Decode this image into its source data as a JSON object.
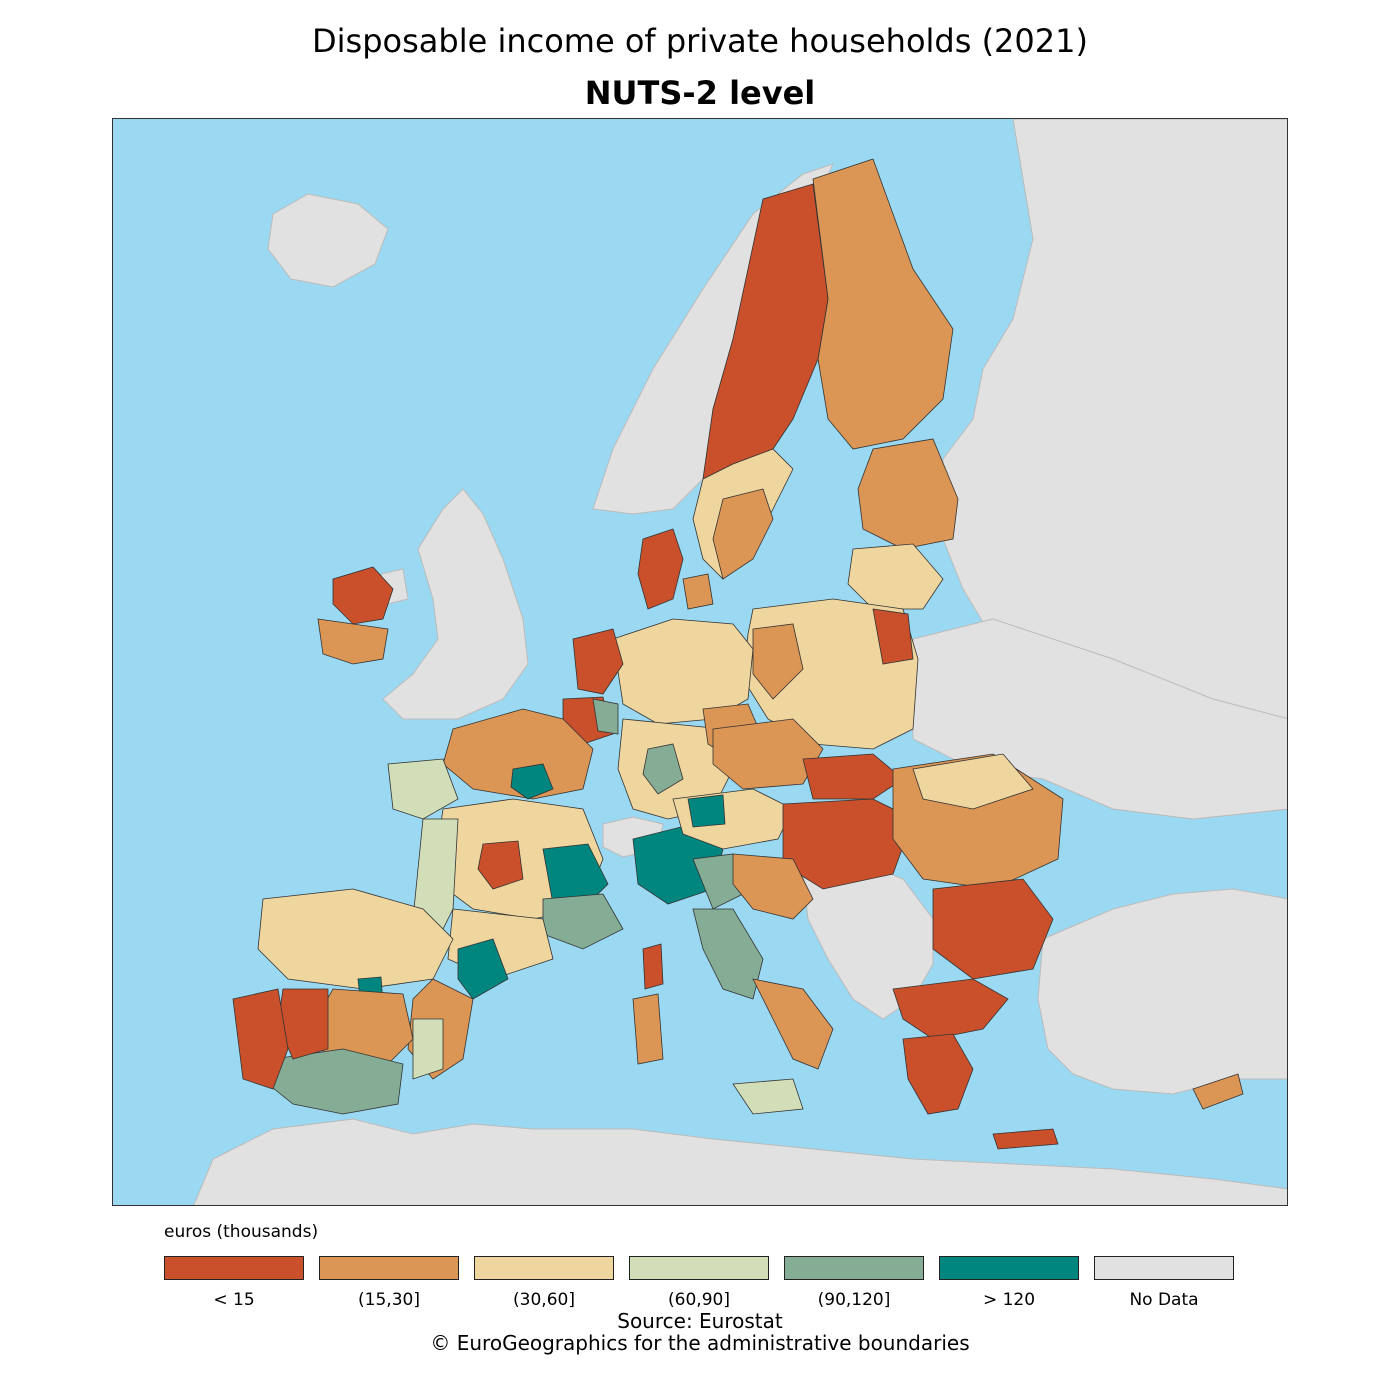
{
  "title": "Disposable income of private households (2021)",
  "subtitle": "NUTS-2 level",
  "legend": {
    "title": "euros (thousands)",
    "classes": [
      {
        "label": "< 15",
        "color": "#c9502b"
      },
      {
        "label": "(15,30]",
        "color": "#db9554"
      },
      {
        "label": "(30,60]",
        "color": "#efd59e"
      },
      {
        "label": "(60,90]",
        "color": "#d1deb8"
      },
      {
        "label": "(90,120]",
        "color": "#85ac95"
      },
      {
        "label": "> 120",
        "color": "#00867f"
      },
      {
        "label": "No Data",
        "color": "#e1e1e1"
      }
    ]
  },
  "source_line1": "Source: Eurostat",
  "source_line2": "© EuroGeographics for the administrative boundaries",
  "colors": {
    "sea": "#9bd9f2",
    "no_data": "#e1e1e1"
  }
}
